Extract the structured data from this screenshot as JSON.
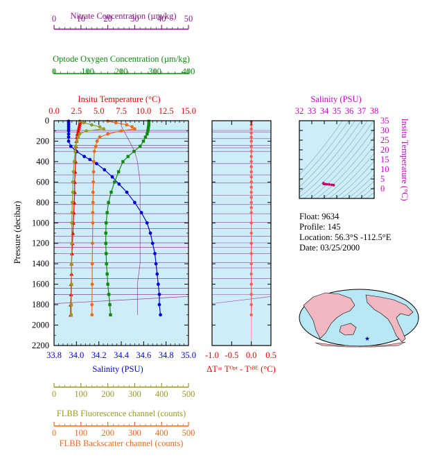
{
  "float_info": {
    "float_line": "Float:  9634",
    "profile_line": "Profile:  145",
    "location_line": "Location:  56.3°S  -112.5°E",
    "date_line": "Date:  03/25/2000"
  },
  "chart_data": [
    {
      "id": "main-profile",
      "type": "line",
      "y_axis": {
        "label": "Pressure (decibar)",
        "range": [
          0,
          2200
        ],
        "ticks": [
          0,
          200,
          400,
          600,
          800,
          1000,
          1200,
          1400,
          1600,
          1800,
          2000,
          2200
        ],
        "inverted": true
      },
      "x_axes": [
        {
          "key": "nitrate",
          "label": "Nitrate Concentration (µm/kg)",
          "range": [
            0,
            50
          ],
          "ticks": [
            0,
            10,
            20,
            30,
            40,
            50
          ],
          "color": "#8b1a8b"
        },
        {
          "key": "oxygen",
          "label": "Optode Oxygen Concentration (µm/kg)",
          "range": [
            0,
            400
          ],
          "ticks": [
            0,
            100,
            200,
            300,
            400
          ],
          "color": "#118811"
        },
        {
          "key": "temperature",
          "label": "Insitu Temperature (°C)",
          "range": [
            0,
            15
          ],
          "ticks": [
            0.0,
            2.5,
            5.0,
            7.5,
            10.0,
            12.5,
            15.0
          ],
          "tick_labels": [
            "0.0",
            "2.5",
            "5.0",
            "7.5",
            "10.0",
            "12.5",
            "15.0"
          ],
          "color": "#ee0000"
        },
        {
          "key": "salinity",
          "label": "Salinity (PSU)",
          "range": [
            33.8,
            35.0
          ],
          "ticks": [
            33.8,
            34.0,
            34.2,
            34.4,
            34.6,
            34.8,
            35.0
          ],
          "tick_labels": [
            "33.8",
            "34.0",
            "34.2",
            "34.4",
            "34.6",
            "34.8",
            "35.0"
          ],
          "color": "#0000dd"
        },
        {
          "key": "fluorescence",
          "label": "FLBB Fluorescence channel (counts)",
          "range": [
            0,
            500
          ],
          "ticks": [
            0,
            100,
            200,
            300,
            400,
            500
          ],
          "color": "#999922"
        },
        {
          "key": "backscatter",
          "label": "FLBB Backscatter channel (counts)",
          "range": [
            0,
            500
          ],
          "ticks": [
            0,
            100,
            200,
            300,
            400,
            500
          ],
          "color": "#ee6a1a"
        }
      ],
      "series": [
        {
          "key": "temperature",
          "color": "#ee0000",
          "marker": "triangle",
          "points": [
            [
              2.9,
              5
            ],
            [
              2.9,
              20
            ],
            [
              2.85,
              40
            ],
            [
              2.8,
              60
            ],
            [
              2.75,
              80
            ],
            [
              2.7,
              100
            ],
            [
              2.6,
              130
            ],
            [
              2.55,
              160
            ],
            [
              2.5,
              200
            ],
            [
              2.45,
              250
            ],
            [
              2.45,
              300
            ],
            [
              2.4,
              400
            ],
            [
              2.35,
              500
            ],
            [
              2.3,
              600
            ],
            [
              2.3,
              700
            ],
            [
              2.25,
              800
            ],
            [
              2.2,
              900
            ],
            [
              2.15,
              1000
            ],
            [
              2.1,
              1100
            ],
            [
              2.05,
              1200
            ],
            [
              2.0,
              1300
            ],
            [
              1.95,
              1400
            ],
            [
              1.95,
              1500
            ],
            [
              1.9,
              1600
            ],
            [
              1.9,
              1700
            ],
            [
              1.85,
              1800
            ],
            [
              1.85,
              1900
            ]
          ]
        },
        {
          "key": "salinity",
          "color": "#0000dd",
          "marker": "circle",
          "points": [
            [
              33.93,
              5
            ],
            [
              33.93,
              20
            ],
            [
              33.93,
              40
            ],
            [
              33.93,
              60
            ],
            [
              33.93,
              80
            ],
            [
              33.93,
              100
            ],
            [
              33.93,
              130
            ],
            [
              33.93,
              160
            ],
            [
              33.93,
              200
            ],
            [
              33.95,
              250
            ],
            [
              34.0,
              300
            ],
            [
              34.07,
              350
            ],
            [
              34.12,
              380
            ],
            [
              34.18,
              420
            ],
            [
              34.25,
              480
            ],
            [
              34.32,
              550
            ],
            [
              34.38,
              620
            ],
            [
              34.45,
              700
            ],
            [
              34.52,
              800
            ],
            [
              34.58,
              900
            ],
            [
              34.63,
              1000
            ],
            [
              34.66,
              1100
            ],
            [
              34.68,
              1200
            ],
            [
              34.7,
              1300
            ],
            [
              34.71,
              1400
            ],
            [
              34.72,
              1500
            ],
            [
              34.73,
              1600
            ],
            [
              34.74,
              1700
            ],
            [
              34.74,
              1800
            ],
            [
              34.75,
              1900
            ]
          ]
        },
        {
          "key": "oxygen",
          "color": "#118811",
          "marker": "square",
          "points": [
            [
              282,
              5
            ],
            [
              282,
              20
            ],
            [
              282,
              40
            ],
            [
              281,
              60
            ],
            [
              280,
              80
            ],
            [
              279,
              100
            ],
            [
              277,
              130
            ],
            [
              272,
              160
            ],
            [
              266,
              200
            ],
            [
              256,
              250
            ],
            [
              238,
              300
            ],
            [
              220,
              350
            ],
            [
              205,
              400
            ],
            [
              192,
              500
            ],
            [
              180,
              600
            ],
            [
              170,
              700
            ],
            [
              162,
              800
            ],
            [
              158,
              900
            ],
            [
              155,
              1000
            ],
            [
              154,
              1100
            ],
            [
              154,
              1200
            ],
            [
              155,
              1300
            ],
            [
              156,
              1400
            ],
            [
              158,
              1500
            ],
            [
              160,
              1600
            ],
            [
              163,
              1700
            ],
            [
              166,
              1800
            ],
            [
              168,
              1900
            ]
          ]
        },
        {
          "key": "nitrate",
          "color": "#8b1a8b",
          "marker": "none",
          "points": [
            [
              25,
              5
            ],
            [
              25,
              50
            ],
            [
              26,
              100
            ],
            [
              28,
              200
            ],
            [
              30,
              300
            ],
            [
              31,
              400
            ],
            [
              32,
              600
            ],
            [
              32,
              800
            ],
            [
              32,
              1000
            ],
            [
              32,
              1200
            ],
            [
              32,
              1400
            ],
            [
              31,
              1600
            ],
            [
              31,
              1800
            ],
            [
              31,
              1900
            ]
          ]
        },
        {
          "key": "fluorescence",
          "color": "#999922",
          "marker": "circle",
          "points": [
            [
              95,
              5
            ],
            [
              110,
              20
            ],
            [
              140,
              40
            ],
            [
              170,
              60
            ],
            [
              185,
              80
            ],
            [
              120,
              100
            ],
            [
              95,
              130
            ],
            [
              90,
              160
            ],
            [
              85,
              200
            ],
            [
              80,
              250
            ],
            [
              78,
              300
            ],
            [
              75,
              400
            ],
            [
              72,
              500
            ],
            [
              70,
              600
            ],
            [
              70,
              700
            ],
            [
              68,
              800
            ],
            [
              67,
              900
            ],
            [
              66,
              1000
            ],
            [
              66,
              1200
            ],
            [
              65,
              1400
            ],
            [
              65,
              1600
            ],
            [
              64,
              1800
            ],
            [
              64,
              1900
            ]
          ]
        },
        {
          "key": "backscatter",
          "color": "#ee6a1a",
          "marker": "circle",
          "points": [
            [
              200,
              5
            ],
            [
              230,
              20
            ],
            [
              270,
              40
            ],
            [
              290,
              60
            ],
            [
              300,
              80
            ],
            [
              250,
              100
            ],
            [
              200,
              130
            ],
            [
              170,
              160
            ],
            [
              160,
              200
            ],
            [
              155,
              250
            ],
            [
              150,
              300
            ],
            [
              148,
              400
            ],
            [
              147,
              500
            ],
            [
              146,
              600
            ],
            [
              145,
              700
            ],
            [
              145,
              800
            ],
            [
              144,
              900
            ],
            [
              144,
              1000
            ],
            [
              143,
              1200
            ],
            [
              142,
              1400
            ],
            [
              142,
              1600
            ],
            [
              141,
              1800
            ],
            [
              141,
              1900
            ]
          ]
        }
      ]
    },
    {
      "id": "delta-t",
      "type": "line",
      "x_axis": {
        "label": "ΔT= Tᴼᵖᵗ - Tˢᴮᴱ (°C)",
        "range": [
          -1.0,
          0.5
        ],
        "ticks": [
          -1.0,
          -0.5,
          0.0,
          0.5
        ],
        "tick_labels": [
          "-1.0",
          "-0.5",
          "0.0",
          "0.5"
        ],
        "color": "#ee0000"
      },
      "y_axis": {
        "range": [
          0,
          2200
        ],
        "inverted": true
      },
      "series": [
        {
          "name": "ΔT",
          "color": "#ff5a5a",
          "marker": "circle",
          "points": [
            [
              0.0,
              10
            ],
            [
              0.0,
              40
            ],
            [
              0.0,
              80
            ],
            [
              0.0,
              120
            ],
            [
              0.0,
              160
            ],
            [
              0.0,
              200
            ],
            [
              0.0,
              250
            ],
            [
              0.0,
              300
            ],
            [
              0.0,
              350
            ],
            [
              0.0,
              400
            ],
            [
              0.0,
              450
            ],
            [
              0.0,
              500
            ],
            [
              0.0,
              550
            ],
            [
              0.0,
              600
            ],
            [
              0.0,
              650
            ],
            [
              0.0,
              700
            ],
            [
              0.0,
              750
            ],
            [
              0.0,
              800
            ],
            [
              0.0,
              850
            ],
            [
              0.0,
              900
            ],
            [
              0.0,
              1000
            ],
            [
              0.0,
              1100
            ],
            [
              0.0,
              1200
            ],
            [
              0.0,
              1300
            ],
            [
              0.0,
              1400
            ],
            [
              0.0,
              1500
            ],
            [
              0.0,
              1600
            ],
            [
              0.0,
              1700
            ],
            [
              0.0,
              1800
            ],
            [
              0.0,
              1900
            ]
          ]
        }
      ]
    },
    {
      "id": "ts-diagram",
      "type": "scatter",
      "x_axis": {
        "label": "Salinity (PSU)",
        "range": [
          32,
          38
        ],
        "ticks": [
          32,
          33,
          34,
          35,
          36,
          37,
          38
        ],
        "color": "#cc00cc"
      },
      "y_axis": {
        "label": "Insitu Temperature (°C)",
        "range": [
          -5,
          35
        ],
        "ticks": [
          0,
          5,
          10,
          15,
          20,
          25,
          30,
          35
        ],
        "color": "#cc00cc"
      },
      "series": [
        {
          "name": "profile",
          "color": "#cc0066",
          "points": [
            [
              33.93,
              2.9
            ],
            [
              33.95,
              2.5
            ],
            [
              34.05,
              2.4
            ],
            [
              34.2,
              2.3
            ],
            [
              34.4,
              2.2
            ],
            [
              34.6,
              2.0
            ],
            [
              34.75,
              1.85
            ]
          ]
        }
      ]
    }
  ]
}
